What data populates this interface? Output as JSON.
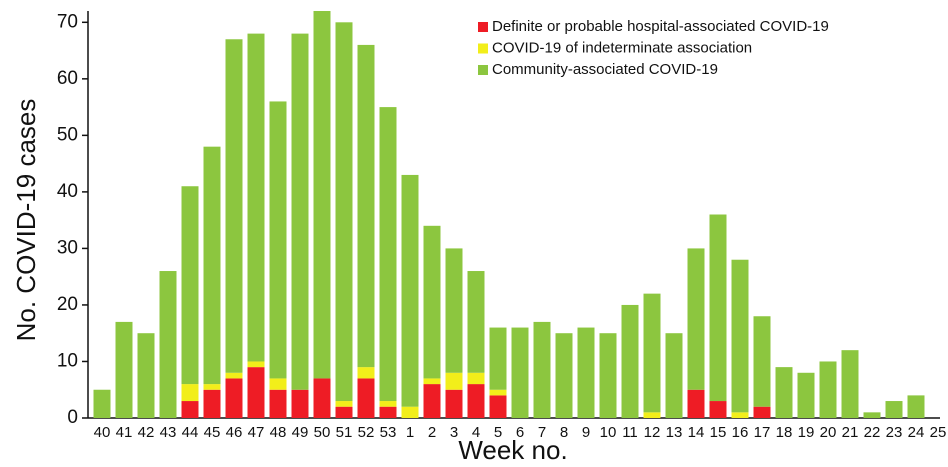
{
  "chart_data": {
    "type": "stacked-bar",
    "xlabel": "Week no.",
    "ylabel": "No. COVID-19 cases",
    "categories": [
      "40",
      "41",
      "42",
      "43",
      "44",
      "45",
      "46",
      "47",
      "48",
      "49",
      "50",
      "51",
      "52",
      "53",
      "1",
      "2",
      "3",
      "4",
      "5",
      "6",
      "7",
      "8",
      "9",
      "10",
      "11",
      "12",
      "13",
      "14",
      "15",
      "16",
      "17",
      "18",
      "19",
      "20",
      "21",
      "22",
      "23",
      "24",
      "25"
    ],
    "series": [
      {
        "name": "Definite or probable hospital-associated COVID-19",
        "color": "#ee1c25",
        "values": [
          0,
          0,
          0,
          0,
          3,
          5,
          7,
          9,
          5,
          5,
          7,
          2,
          7,
          2,
          0,
          6,
          5,
          6,
          4,
          0,
          0,
          0,
          0,
          0,
          0,
          0,
          0,
          5,
          3,
          0,
          2,
          0,
          0,
          0,
          0,
          0,
          0,
          0,
          0
        ]
      },
      {
        "name": "COVID-19 of indeterminate association",
        "color": "#f2ee1a",
        "values": [
          0,
          0,
          0,
          0,
          3,
          1,
          1,
          1,
          2,
          0,
          0,
          1,
          2,
          1,
          2,
          1,
          3,
          2,
          1,
          0,
          0,
          0,
          0,
          0,
          0,
          1,
          0,
          0,
          0,
          1,
          0,
          0,
          0,
          0,
          0,
          0,
          0,
          0,
          0
        ]
      },
      {
        "name": "Community-associated COVID-19",
        "color": "#8cc63f",
        "values": [
          5,
          17,
          15,
          26,
          35,
          42,
          59,
          58,
          49,
          63,
          65,
          67,
          57,
          52,
          41,
          27,
          22,
          18,
          11,
          16,
          17,
          15,
          16,
          15,
          20,
          21,
          15,
          25,
          33,
          27,
          16,
          9,
          8,
          10,
          12,
          1,
          3,
          4,
          0
        ]
      }
    ],
    "ylim": [
      0,
      72
    ],
    "yticks": [
      0,
      10,
      20,
      30,
      40,
      50,
      60,
      70
    ]
  }
}
